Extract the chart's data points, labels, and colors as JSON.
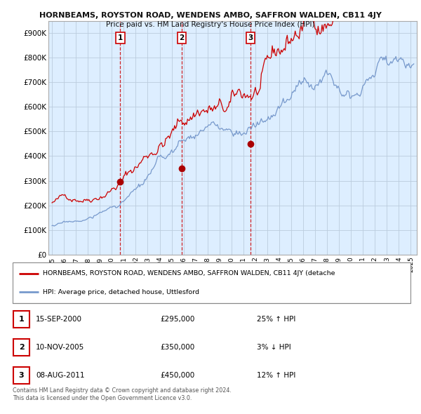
{
  "title": "HORNBEAMS, ROYSTON ROAD, WENDENS AMBO, SAFFRON WALDEN, CB11 4JY",
  "subtitle": "Price paid vs. HM Land Registry's House Price Index (HPI)",
  "ylim": [
    0,
    950000
  ],
  "yticks": [
    0,
    100000,
    200000,
    300000,
    400000,
    500000,
    600000,
    700000,
    800000,
    900000
  ],
  "ytick_labels": [
    "£0",
    "£100K",
    "£200K",
    "£300K",
    "£400K",
    "£500K",
    "£600K",
    "£700K",
    "£800K",
    "£900K"
  ],
  "sale_dates_num": [
    2000.71,
    2005.86,
    2011.6
  ],
  "sale_prices": [
    295000,
    350000,
    450000
  ],
  "sale_labels": [
    "1",
    "2",
    "3"
  ],
  "red_line_color": "#cc0000",
  "blue_line_color": "#7799cc",
  "chart_bg_color": "#ddeeff",
  "sale_marker_color": "#aa0000",
  "vline_color": "#cc0000",
  "grid_color": "#bbccdd",
  "background_color": "#ffffff",
  "legend_line1": "HORNBEAMS, ROYSTON ROAD, WENDENS AMBO, SAFFRON WALDEN, CB11 4JY (detache",
  "legend_line2": "HPI: Average price, detached house, Uttlesford",
  "table_rows": [
    [
      "1",
      "15-SEP-2000",
      "£295,000",
      "25% ↑ HPI"
    ],
    [
      "2",
      "10-NOV-2005",
      "£350,000",
      "3% ↓ HPI"
    ],
    [
      "3",
      "08-AUG-2011",
      "£450,000",
      "12% ↑ HPI"
    ]
  ],
  "footnote1": "Contains HM Land Registry data © Crown copyright and database right 2024.",
  "footnote2": "This data is licensed under the Open Government Licence v3.0."
}
